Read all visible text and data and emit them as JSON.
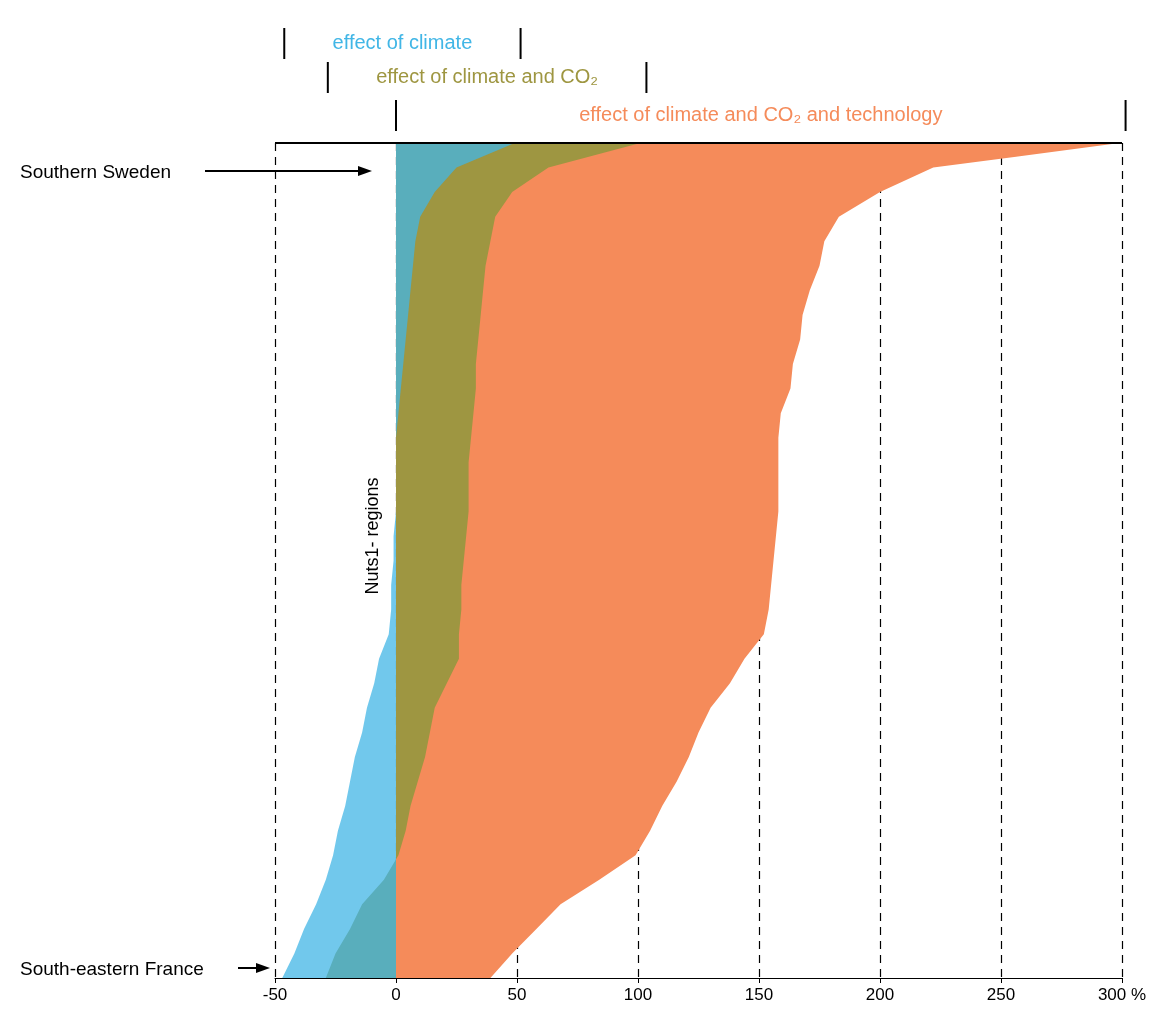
{
  "chart_data": {
    "type": "area",
    "orientation": "horizontal",
    "ylabel": "Nuts1- regions",
    "categories": [
      null,
      null,
      null,
      null,
      null,
      null,
      null,
      null,
      null,
      null,
      null,
      null,
      null,
      null,
      null,
      null,
      null,
      null,
      null,
      null,
      null,
      null,
      null,
      null,
      null,
      null,
      null,
      null,
      null,
      null,
      null,
      null,
      null,
      null,
      null
    ],
    "series": [
      {
        "name": "effect of climate and CO₂ and technology",
        "color": "#f58b5a",
        "values": [
          299,
          222,
          200,
          183,
          177,
          175,
          171,
          168,
          167,
          164,
          163,
          159,
          158,
          158,
          158,
          158,
          157,
          156,
          155,
          154,
          152,
          144,
          138,
          130,
          125,
          121,
          116,
          110,
          105,
          99,
          84,
          68,
          58,
          48,
          39
        ]
      },
      {
        "name": "effect of climate and CO₂",
        "color": "#9e9641",
        "values": [
          101,
          63,
          48,
          41,
          39,
          37,
          36,
          35,
          34,
          33,
          33,
          32,
          31,
          30,
          30,
          30,
          29,
          28,
          27,
          27,
          26,
          26,
          21,
          16,
          14,
          12,
          9,
          6,
          4,
          1,
          -5,
          -14,
          -19,
          -25,
          -29
        ]
      },
      {
        "name": "effect of climate",
        "color": "#41b6e6",
        "values": [
          49,
          25,
          16,
          10,
          8,
          7,
          6,
          5,
          4,
          3,
          2,
          1,
          0,
          0,
          0,
          0,
          -1,
          -1,
          -2,
          -2,
          -3,
          -7,
          -9,
          -12,
          -14,
          -17,
          -19,
          -21,
          -24,
          -26,
          -29,
          -33,
          -38,
          -42,
          -47
        ]
      }
    ],
    "xlim": [
      -50,
      300
    ],
    "xticks": [
      -50,
      0,
      50,
      100,
      150,
      200,
      250,
      {
        "value": 300,
        "label": "300 %"
      }
    ],
    "grid": "x",
    "tick_labels": "x",
    "legend": false,
    "annotations": [
      "Southern Sweden",
      "South-eastern France"
    ]
  }
}
